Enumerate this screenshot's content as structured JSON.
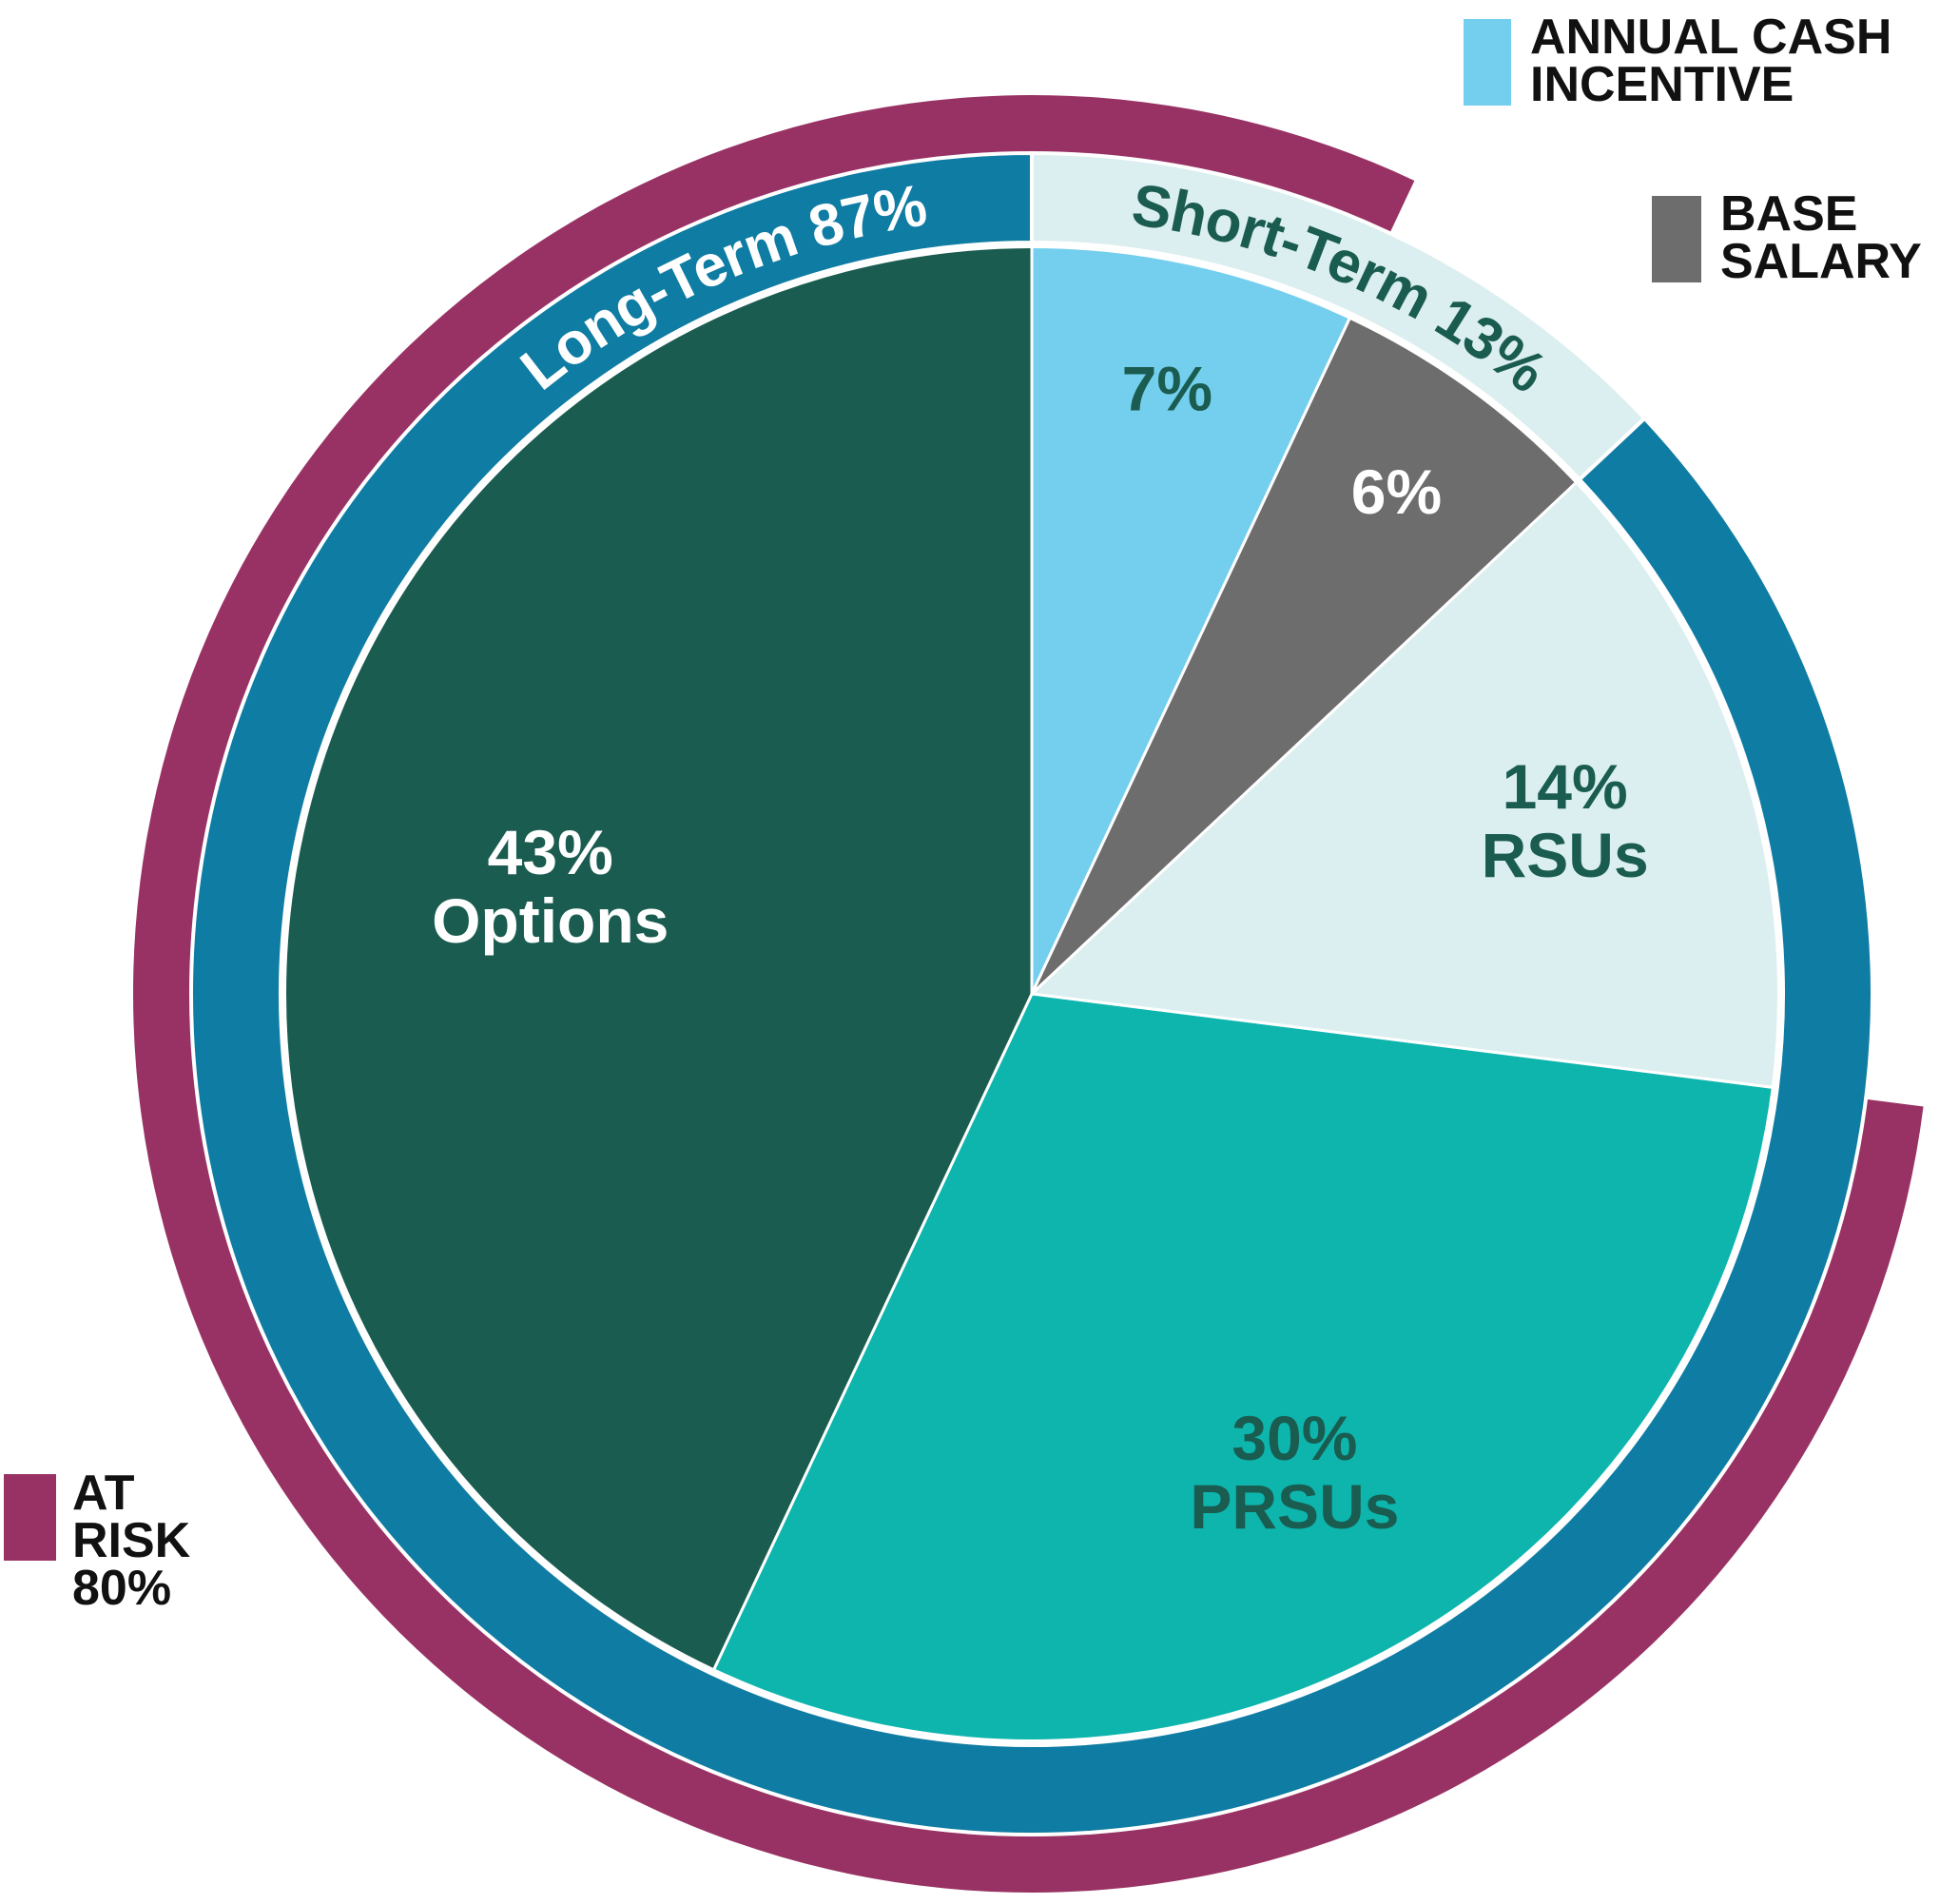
{
  "chart_data": {
    "type": "pie",
    "categories": [
      "ANNUAL CASH INCENTIVE",
      "BASE SALARY",
      "RSUs",
      "PRSUs",
      "Options"
    ],
    "values": [
      7,
      6,
      14,
      30,
      43
    ],
    "value_labels": [
      "7%",
      "6%",
      "14%",
      "30%",
      "43%"
    ],
    "colors": [
      "#74cfee",
      "#6d6d6d",
      "#dbeef0",
      "#0db5ad",
      "#1a5c50"
    ],
    "rings": [
      {
        "name": "Short-Term",
        "label": "Short-Term 13%",
        "value": 13,
        "color": "#dbeef0"
      },
      {
        "name": "Long-Term",
        "label": "Long-Term 87%",
        "value": 87,
        "color": "#0f7ca3"
      }
    ],
    "at_risk": {
      "label": "AT RISK 80%",
      "value": 80,
      "color": "#993264"
    }
  }
}
